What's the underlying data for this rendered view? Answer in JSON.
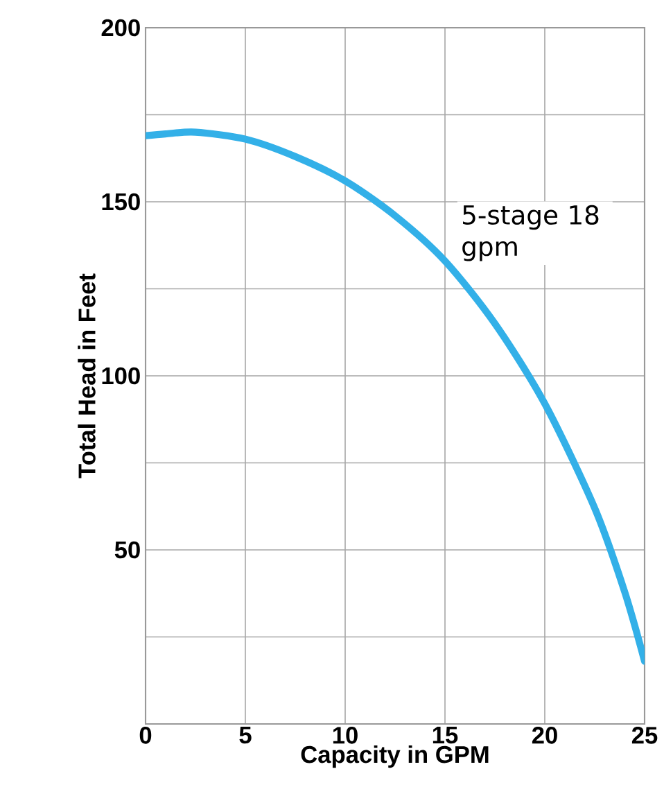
{
  "chart_data": {
    "type": "line",
    "xlabel": "Capacity in GPM",
    "ylabel": "Total Head in Feet",
    "x": [
      0,
      1,
      2.5,
      5,
      7.5,
      10,
      12.5,
      15,
      17.5,
      20,
      22.5,
      24,
      25
    ],
    "series": [
      {
        "name": "5-stage 18 gpm",
        "color": "#33b0e8",
        "values": [
          169,
          169.5,
          170,
          168,
          163,
          156,
          146,
          133,
          115,
          92,
          62,
          38,
          18
        ]
      }
    ],
    "xlim": [
      0,
      25
    ],
    "ylim": [
      0,
      200
    ],
    "xticks": [
      0,
      5,
      10,
      15,
      20,
      25
    ],
    "yticks": [
      {
        "value": 0,
        "label": null
      },
      {
        "value": 25,
        "label": null
      },
      50,
      {
        "value": 75,
        "label": null
      },
      100,
      {
        "value": 125,
        "label": null
      },
      150,
      {
        "value": 175,
        "label": null
      },
      200
    ],
    "grid": true,
    "marker": "none",
    "line_style": "solid"
  }
}
